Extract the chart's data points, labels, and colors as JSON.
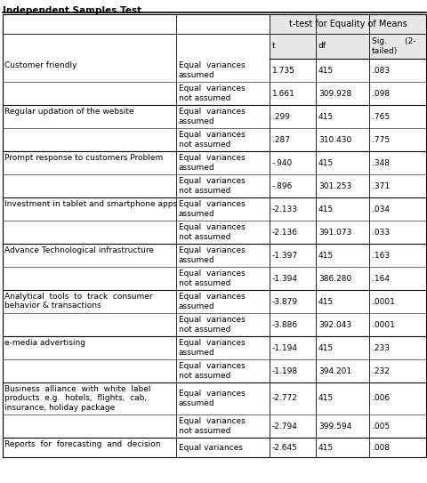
{
  "title": "Independent Samples Test",
  "header_main": "t-test for Equality of Means",
  "rows": [
    [
      "Customer friendly",
      "Equal  variances\nassumed",
      "1.735",
      "415",
      ".083"
    ],
    [
      "",
      "Equal  variances\nnot assumed",
      "1.661",
      "309.928",
      ".098"
    ],
    [
      "Regular updation of the website",
      "Equal  variances\nassumed",
      ".299",
      "415",
      ".765"
    ],
    [
      "",
      "Equal  variances\nnot assumed",
      ".287",
      "310.430",
      ".775"
    ],
    [
      "Prompt response to customers Problem",
      "Equal  variances\nassumed",
      "-.940",
      "415",
      ".348"
    ],
    [
      "",
      "Equal  variances\nnot assumed",
      "-.896",
      "301.253",
      ".371"
    ],
    [
      "Investment in tablet and smartphone apps",
      "Equal  variances\nassumed",
      "-2.133",
      "415",
      ".034"
    ],
    [
      "",
      "Equal  variances\nnot assumed",
      "-2.136",
      "391.073",
      ".033"
    ],
    [
      "Advance Technological infrastructure",
      "Equal  variances\nassumed",
      "-1.397",
      "415",
      ".163"
    ],
    [
      "",
      "Equal  variances\nnot assumed",
      "-1.394",
      "386.280",
      ".164"
    ],
    [
      "Analytical  tools  to  track  consumer\nbehavior & transactions",
      "Equal  variances\nassumed",
      "-3.879",
      "415",
      ".0001"
    ],
    [
      "",
      "Equal  variances\nnot assumed",
      "-3.886",
      "392.043",
      ".0001"
    ],
    [
      "e-media advertising",
      "Equal  variances\nassumed",
      "-1.194",
      "415",
      ".233"
    ],
    [
      "",
      "Equal  variances\nnot assumed",
      "-1.198",
      "394.201",
      ".232"
    ],
    [
      "Business  alliance  with  white  label\nproducts  e.g.  hotels,  flights,  cab,\ninsurance, holiday package",
      "Equal  variances\nassumed",
      "-2.772",
      "415",
      ".006"
    ],
    [
      "",
      "Equal  variances\nnot assumed",
      "-2.794",
      "399.594",
      ".005"
    ],
    [
      "Reports  for  forecasting  and  decision",
      "Equal variances",
      "-2.645",
      "415",
      ".008"
    ]
  ],
  "font_size": 6.5,
  "title_font_size": 7.5,
  "background_color": "#ffffff",
  "line_color": "#000000"
}
